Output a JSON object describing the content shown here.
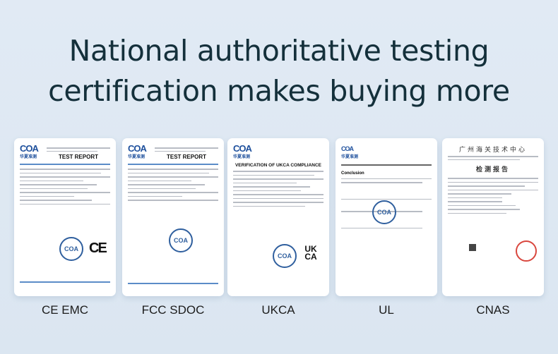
{
  "headline": {
    "line1": "National authoritative testing",
    "line2": "certification makes buying more"
  },
  "certificates": [
    {
      "label": "CE EMC",
      "doc_title": "TEST REPORT",
      "logo": "COA",
      "logo_sub": "华夏准测",
      "mark": "CE"
    },
    {
      "label": "FCC SDOC",
      "doc_title": "TEST REPORT",
      "logo": "COA",
      "logo_sub": "华夏准测"
    },
    {
      "label": "UKCA",
      "doc_title": "VERIFICATION OF UKCA COMPLIANCE",
      "logo": "COA",
      "logo_sub": "华夏准测",
      "mark": "UK CA"
    },
    {
      "label": "UL",
      "doc_title": "Conclusion",
      "logo": "COA",
      "logo_sub": "华夏准测"
    },
    {
      "label": "CNAS",
      "org": "广州海关技术中心",
      "doc_title": "检测报告"
    }
  ],
  "colors": {
    "headline": "#14303b",
    "background": "#dde8f3",
    "seal_blue": "#2f5f9e",
    "seal_red": "#d9473e"
  }
}
